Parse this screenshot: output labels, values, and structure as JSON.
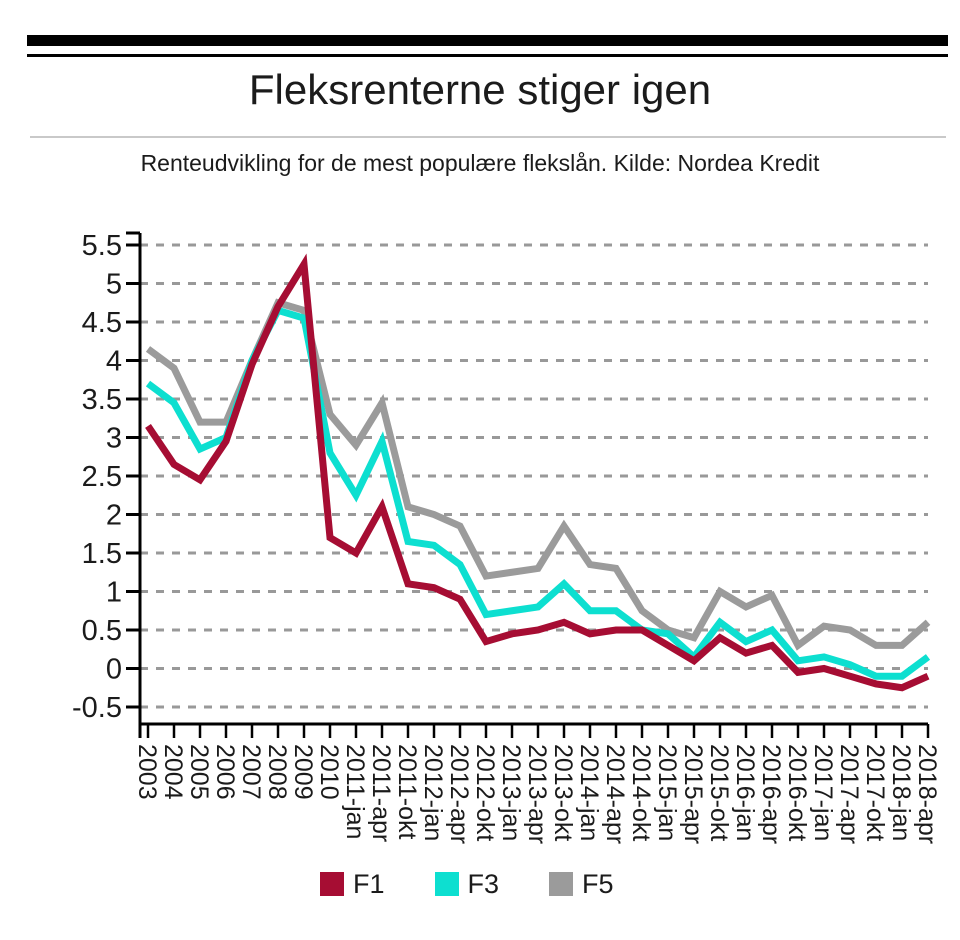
{
  "header": {
    "title": "Fleksrenterne stiger igen",
    "subtitle": "Renteudvikling for de mest populære flekslån. Kilde: Nordea Kredit"
  },
  "chart_data": {
    "type": "line",
    "title": "Fleksrenterne stiger igen",
    "subtitle": "Renteudvikling for de mest populære flekslån. Kilde: Nordea Kredit",
    "xlabel": "",
    "ylabel": "",
    "ylim": [
      -0.5,
      5.5
    ],
    "y_ticks": [
      5.5,
      5,
      4.5,
      4,
      3.5,
      3,
      2.5,
      2,
      1.5,
      1,
      0.5,
      0,
      -0.5
    ],
    "grid": "horizontal-dashed",
    "legend_position": "bottom",
    "categories": [
      "2003",
      "2004",
      "2005",
      "2006",
      "2007",
      "2008",
      "2009",
      "2010",
      "2011-jan",
      "2011-apr",
      "2011-okt",
      "2012-jan",
      "2012-apr",
      "2012-okt",
      "2013-jan",
      "2013-apr",
      "2013-okt",
      "2014-jan",
      "2014-apr",
      "2014-okt",
      "2015-jan",
      "2015-apr",
      "2015-okt",
      "2016-jan",
      "2016-apr",
      "2016-okt",
      "2017-jan",
      "2017-apr",
      "2017-okt",
      "2018-jan",
      "2018-apr"
    ],
    "series": [
      {
        "name": "F1",
        "color": "#A60D33",
        "values": [
          3.15,
          2.65,
          2.45,
          2.95,
          3.95,
          4.7,
          5.25,
          1.7,
          1.5,
          2.1,
          1.1,
          1.05,
          0.9,
          0.35,
          0.45,
          0.5,
          0.6,
          0.45,
          0.5,
          0.5,
          0.3,
          0.1,
          0.4,
          0.2,
          0.3,
          -0.05,
          0,
          -0.1,
          -0.2,
          -0.25,
          -0.1
        ]
      },
      {
        "name": "F3",
        "color": "#0DDFD0",
        "values": [
          3.7,
          3.45,
          2.85,
          3.0,
          4.0,
          4.65,
          4.55,
          2.8,
          2.25,
          2.95,
          1.65,
          1.6,
          1.35,
          0.7,
          0.75,
          0.8,
          1.1,
          0.75,
          0.75,
          0.5,
          0.45,
          0.15,
          0.6,
          0.35,
          0.5,
          0.1,
          0.15,
          0.05,
          -0.1,
          -0.1,
          0.15
        ]
      },
      {
        "name": "F5",
        "color": "#9B9B9B",
        "values": [
          4.15,
          3.9,
          3.2,
          3.2,
          4.0,
          4.75,
          4.65,
          3.3,
          2.9,
          3.45,
          2.1,
          2.0,
          1.85,
          1.2,
          1.25,
          1.3,
          1.85,
          1.35,
          1.3,
          0.75,
          0.5,
          0.4,
          1.0,
          0.8,
          0.95,
          0.3,
          0.55,
          0.5,
          0.3,
          0.3,
          0.6
        ]
      }
    ]
  },
  "style": {
    "axis_color": "#000000",
    "grid_color": "#999999",
    "label_color": "#1b1b1b",
    "divider_color": "#c9c9c9"
  }
}
